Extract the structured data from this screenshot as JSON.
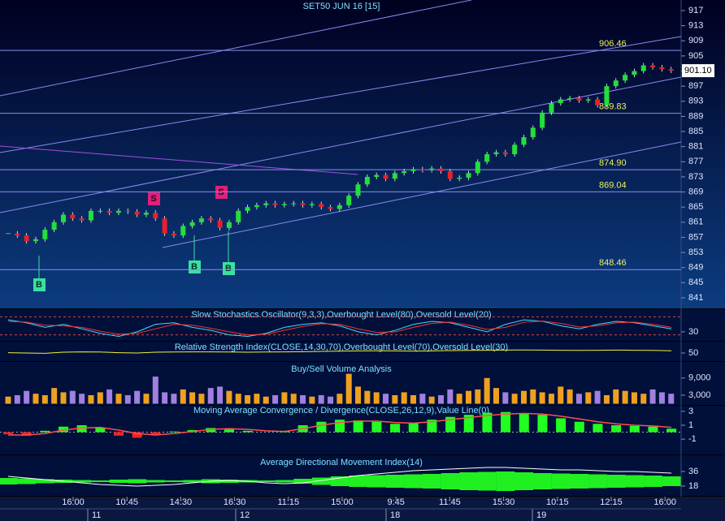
{
  "chart_data": {
    "type": "candlestick",
    "title": "SET50 JUN 16  [15]",
    "closes": [
      858,
      857.5,
      856,
      856.5,
      859,
      861,
      863,
      862,
      861.5,
      864,
      864,
      863.5,
      864,
      863.8,
      863,
      863.5,
      862,
      858,
      857.5,
      860,
      861,
      862,
      861.5,
      859.5,
      861,
      864,
      865,
      865.5,
      866,
      865.5,
      865.8,
      866,
      865.5,
      865.8,
      865,
      864.5,
      865.5,
      868,
      871,
      873,
      873.5,
      872.5,
      874,
      874.5,
      875,
      874.8,
      875.2,
      874.5,
      872.5,
      872.8,
      874,
      877,
      879,
      879.5,
      879,
      881.5,
      883.5,
      886,
      890,
      892.5,
      893.5,
      893.8,
      893.2,
      893.5,
      892,
      897,
      898.5,
      900,
      901,
      902.5,
      902,
      901.5,
      901.1
    ],
    "up_color": "#22e03a",
    "down_color": "#e8202a",
    "ylim": [
      838.2,
      919.8
    ],
    "yticks": [
      917,
      913,
      909,
      905,
      901,
      897,
      893,
      889,
      885,
      881,
      877,
      873,
      869,
      865,
      861,
      857,
      853,
      849,
      845,
      841
    ],
    "levels": [
      906.46,
      889.83,
      {
        "value": 874.9,
        "label": "874.90"
      },
      869.04,
      848.46
    ],
    "last_price": {
      "value": 901.1,
      "label": "901.10"
    },
    "signals": [
      "B",
      "S",
      "S",
      "B",
      "B"
    ],
    "time_labels": [
      "16:00",
      "10:45",
      "14:30",
      "16:30",
      "11:15",
      "15:00",
      "9:45",
      "11:45",
      "15:30",
      "10:15",
      "12:15",
      "16:00"
    ],
    "date_labels": [
      "11",
      "12",
      "18",
      "19"
    ],
    "stochastic": {
      "title": "Slow Stochastics Oscillator(9,3,3),Overbought Level(80),Oversold Level(20)",
      "k": [
        70,
        60,
        45,
        55,
        40,
        25,
        15,
        30,
        55,
        60,
        45,
        35,
        20,
        15,
        25,
        45,
        55,
        60,
        50,
        30,
        20,
        35,
        55,
        65,
        60,
        45,
        30,
        55,
        70,
        65,
        50,
        40,
        55,
        65,
        60,
        50,
        40
      ],
      "d": [
        65,
        62,
        52,
        50,
        45,
        32,
        22,
        25,
        40,
        55,
        52,
        42,
        30,
        20,
        22,
        35,
        48,
        57,
        55,
        40,
        28,
        30,
        45,
        58,
        62,
        52,
        38,
        45,
        62,
        66,
        58,
        46,
        50,
        60,
        62,
        55,
        45
      ],
      "levels": [
        80,
        20
      ],
      "ylim": [
        0,
        100
      ],
      "yticks": [
        30
      ]
    },
    "rsi": {
      "title": "Relative Strength Index(CLOSE,14,30,70),Overbought Level(70),Oversold Level(30)",
      "values": [
        52,
        50,
        48,
        55,
        57,
        56,
        52,
        50,
        55,
        56,
        57,
        57,
        56,
        55,
        56,
        57,
        58,
        60,
        62,
        63,
        64,
        63,
        62,
        63,
        65,
        66,
        67,
        68,
        69,
        68,
        67,
        66,
        67,
        68,
        67,
        66,
        64
      ],
      "ylim": [
        0,
        100
      ],
      "yticks": [
        50
      ]
    },
    "volume": {
      "title": "Buy/Sell Volume Analysis",
      "values": [
        2500,
        3000,
        4500,
        3500,
        3000,
        5500,
        4000,
        4500,
        3500,
        3000,
        4000,
        5000,
        3500,
        3000,
        4500,
        3500,
        9500,
        4000,
        3500,
        5000,
        4000,
        3500,
        5500,
        6000,
        4500,
        3500,
        3000,
        3500,
        2500,
        3000,
        4000,
        3500,
        3000,
        2500,
        3000,
        2500,
        3500,
        10500,
        6000,
        4500,
        4000,
        3500,
        3000,
        4000,
        3000,
        3500,
        2500,
        3000,
        5000,
        3500,
        4500,
        5000,
        9000,
        5500,
        4000,
        3500,
        4500,
        5000,
        4000,
        3500,
        6000,
        5000,
        3500,
        4000,
        4500,
        3000,
        5000,
        4500,
        4000,
        3500,
        5000,
        4000,
        3500
      ],
      "up_color": "#f0a020",
      "down_color": "#a080e0",
      "ylim": [
        0,
        13500
      ],
      "yticks": [
        {
          "value": 9000,
          "label": "9,000"
        },
        {
          "value": 3000,
          "label": "3,000"
        }
      ]
    },
    "macd": {
      "title": "Moving Average Convergence / Divergence(CLOSE,26,12,9),Value Line(0)",
      "macd": [
        -0.3,
        -0.5,
        0.2,
        0.8,
        1.0,
        0.6,
        -0.5,
        -0.8,
        -0.3,
        0.1,
        0.3,
        0.6,
        0.4,
        0.2,
        0.0,
        0.2,
        1.0,
        1.5,
        1.8,
        1.7,
        1.5,
        1.2,
        1.3,
        1.8,
        2.2,
        2.5,
        2.8,
        2.9,
        2.7,
        2.5,
        2.0,
        1.5,
        1.2,
        1.0,
        0.9,
        0.8,
        0.5
      ],
      "signal": [
        -0.4,
        -0.4,
        -0.2,
        0.3,
        0.6,
        0.7,
        0.3,
        -0.2,
        -0.4,
        -0.2,
        0.1,
        0.4,
        0.5,
        0.4,
        0.2,
        0.1,
        0.5,
        1.0,
        1.4,
        1.6,
        1.6,
        1.4,
        1.3,
        1.5,
        1.8,
        2.1,
        2.4,
        2.6,
        2.7,
        2.6,
        2.3,
        1.9,
        1.5,
        1.2,
        1.0,
        0.9,
        0.7
      ],
      "ylim": [
        -3.2,
        3.8
      ],
      "yticks": [
        3,
        1,
        -1
      ]
    },
    "adx": {
      "title": "Average Directional Movement Index(14)",
      "values": [
        30,
        28,
        26,
        24,
        22,
        20,
        19,
        18,
        19,
        20,
        22,
        24,
        25,
        24,
        22,
        21,
        22,
        25,
        28,
        31,
        33,
        35,
        37,
        38,
        39,
        40,
        41,
        41,
        40,
        39,
        38,
        38,
        37,
        36,
        36,
        35,
        34
      ],
      "spread": [
        8,
        7,
        5,
        4,
        3,
        2,
        4,
        5,
        3,
        2,
        3,
        5,
        4,
        3,
        2,
        3,
        6,
        9,
        12,
        14,
        15,
        16,
        17,
        18,
        20,
        22,
        23,
        24,
        22,
        20,
        19,
        18,
        17,
        16,
        15,
        14,
        12
      ],
      "ylim": [
        6,
        54
      ],
      "yticks": [
        36,
        18
      ]
    }
  }
}
